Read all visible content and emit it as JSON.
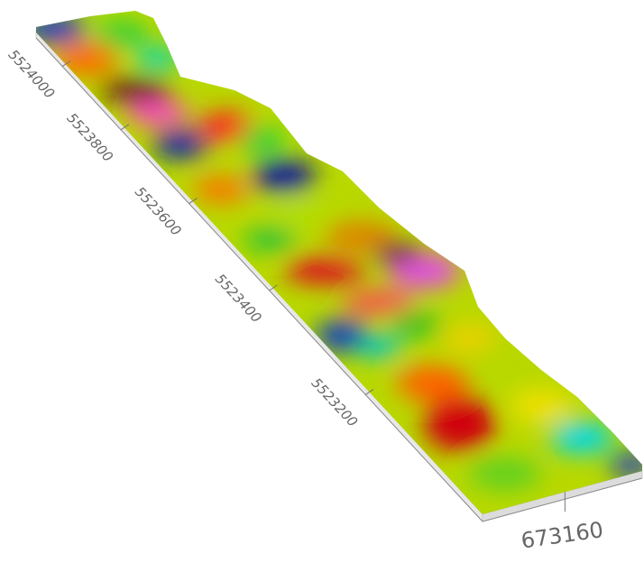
{
  "chart_data": {
    "type": "surface3d",
    "ylim": [
      5524100,
      5523000
    ],
    "yticks": [
      5524000,
      5523800,
      5523600,
      5523400,
      5523200
    ],
    "xlim": [
      673080,
      673235
    ],
    "xticks": [
      673160
    ]
  }
}
